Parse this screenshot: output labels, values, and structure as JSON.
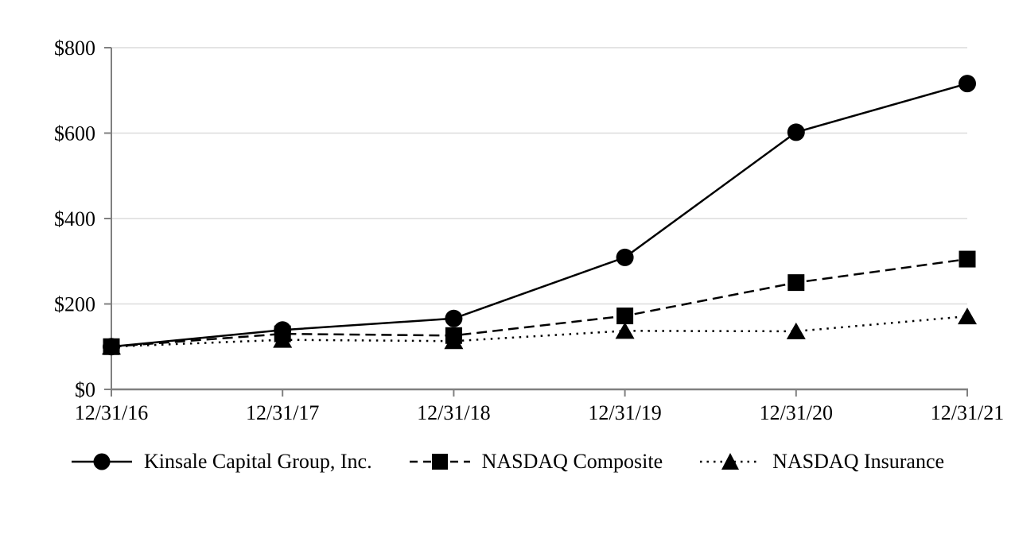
{
  "chart_data": {
    "type": "line",
    "title": "",
    "xlabel": "",
    "ylabel": "",
    "categories": [
      "12/31/16",
      "12/31/17",
      "12/31/18",
      "12/31/19",
      "12/31/20",
      "12/31/21"
    ],
    "series": [
      {
        "name": "Kinsale Capital Group, Inc.",
        "marker": "circle",
        "line_style": "solid",
        "values": [
          100,
          139,
          166,
          309,
          602,
          716
        ]
      },
      {
        "name": "NASDAQ Composite",
        "marker": "square",
        "line_style": "dashed",
        "values": [
          100,
          130,
          126,
          172,
          250,
          305
        ]
      },
      {
        "name": "NASDAQ Insurance",
        "marker": "triangle",
        "line_style": "dotted",
        "values": [
          100,
          116,
          113,
          137,
          136,
          171
        ]
      }
    ],
    "y_ticks": [
      {
        "label": "$0",
        "value": 0
      },
      {
        "label": "$200",
        "value": 200
      },
      {
        "label": "$400",
        "value": 400
      },
      {
        "label": "$600",
        "value": 600
      },
      {
        "label": "$800",
        "value": 800
      }
    ],
    "ylim": [
      0,
      800
    ],
    "grid": true,
    "legend_position": "bottom",
    "colors": {
      "series": "#000000",
      "axis": "#808080",
      "gridline": "#dcdcdc",
      "background": "#ffffff",
      "text": "#000000"
    }
  }
}
